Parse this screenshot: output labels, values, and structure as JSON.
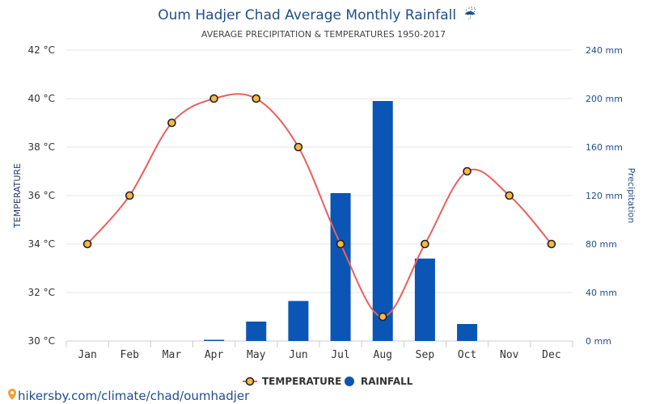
{
  "page": {
    "title": "Oum Hadjer Chad Average Monthly Rainfall",
    "title_icon": "umbrella-rain-icon",
    "title_icon_glyph": "☔",
    "subtitle": "AVERAGE PRECIPITATION & TEMPERATURES 1950-2017",
    "source_link": "hikersby.com/climate/chad/oumhadjer",
    "source_icon": "map-pin-icon"
  },
  "colors": {
    "title": "#1f4e8c",
    "temperature_line": "#e8605e",
    "marker_fill": "#f5b942",
    "marker_stroke": "#222222",
    "rain_bar": "#0b55b5",
    "grid": "#e5e5e5",
    "right_axis_text": "#1f4e8c"
  },
  "chart_data": {
    "type": "bar",
    "categories": [
      "Jan",
      "Feb",
      "Mar",
      "Apr",
      "May",
      "Jun",
      "Jul",
      "Aug",
      "Sep",
      "Oct",
      "Nov",
      "Dec"
    ],
    "series": [
      {
        "name": "TEMPERATURE",
        "type": "line",
        "axis": "left",
        "values": [
          34,
          36,
          39,
          40,
          40,
          38,
          34,
          31,
          34,
          37,
          36,
          34
        ]
      },
      {
        "name": "RAINFALL",
        "type": "bar",
        "axis": "right",
        "values": [
          0,
          0,
          0,
          1,
          16,
          33,
          122,
          198,
          68,
          14,
          0,
          0
        ]
      }
    ],
    "y_left": {
      "label": "TEMPERATURE",
      "range": [
        30,
        42
      ],
      "ticks": [
        30,
        32,
        34,
        36,
        38,
        40,
        42
      ],
      "tick_labels": [
        "30 °C",
        "32 °C",
        "34 °C",
        "36 °C",
        "38 °C",
        "40 °C",
        "42 °C"
      ]
    },
    "y_right": {
      "label": "Precipitation",
      "range": [
        0,
        240
      ],
      "ticks": [
        0,
        40,
        80,
        120,
        160,
        200,
        240
      ],
      "tick_labels": [
        "0 mm",
        "40 mm",
        "80 mm",
        "120 mm",
        "160 mm",
        "200 mm",
        "240 mm"
      ]
    },
    "grid": true,
    "legend": {
      "placement": "bottom-center",
      "items": [
        "TEMPERATURE",
        "RAINFALL"
      ]
    }
  }
}
